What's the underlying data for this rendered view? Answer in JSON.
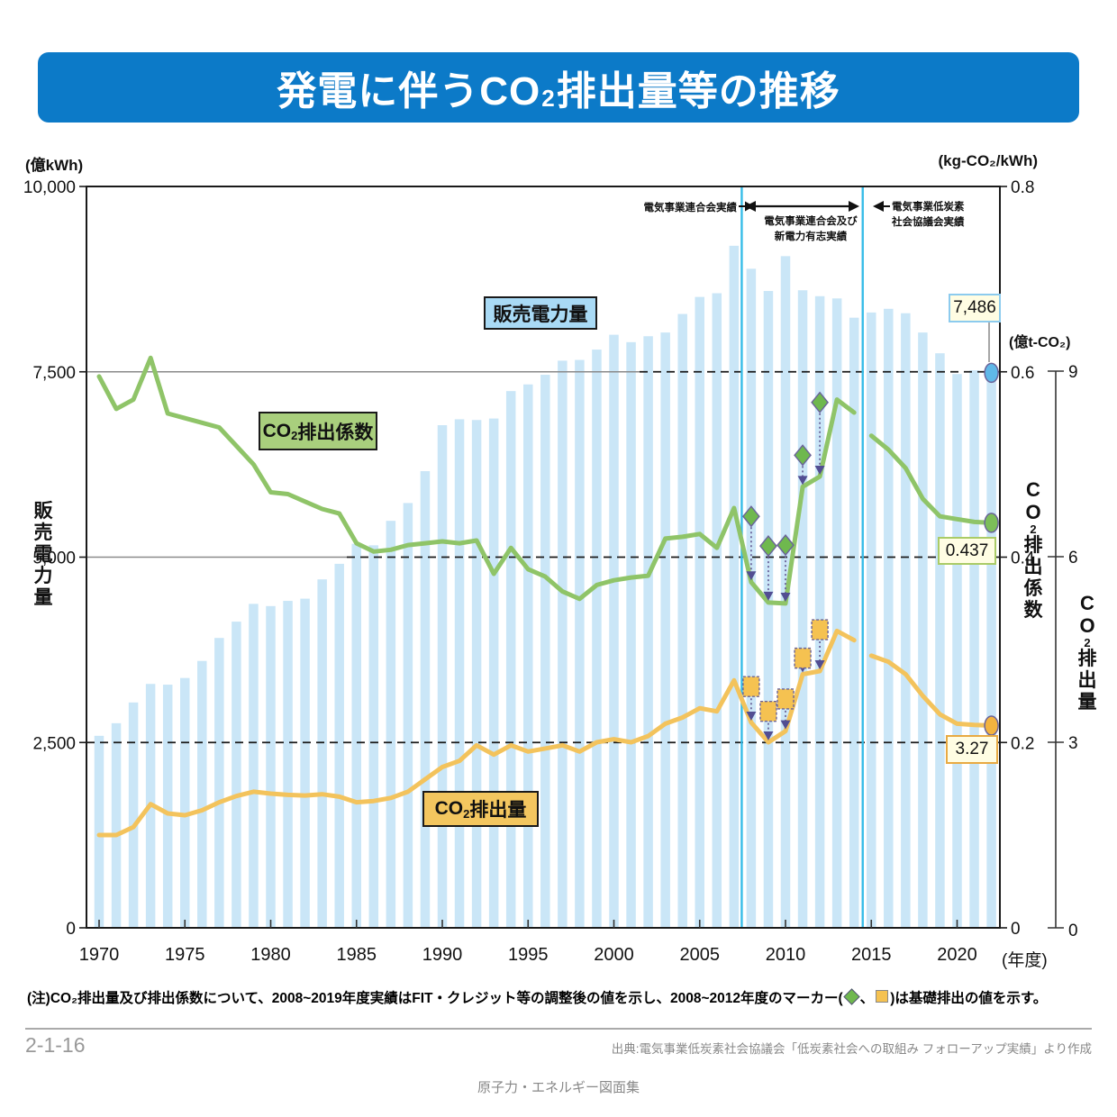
{
  "header": {
    "title_pre": "発電に伴うCO",
    "title_sub": "2",
    "title_post": "排出量等の推移"
  },
  "units": {
    "left": "(億kWh)",
    "right": "(kg-CO₂/kWh)",
    "right2": "(億t-CO₂)",
    "x": "(年度)"
  },
  "legend": {
    "sales": "販売電力量",
    "coef_pre": "CO",
    "coef_sub": "2",
    "coef_post": "排出係数",
    "co2_pre": "CO",
    "co2_sub": "2",
    "co2_post": "排出量"
  },
  "callouts": {
    "sales": "7,486",
    "coef": "0.437",
    "co2": "3.27"
  },
  "annotations": {
    "a1": "電気事業連合会実績",
    "a2_line1": "電気事業連合会及び",
    "a2_line2": "新電力有志実績",
    "a3_line1": "電気事業低炭素",
    "a3_line2": "社会協議会実績"
  },
  "note": {
    "pre": "(注)CO₂排出量及び排出係数について、2008~2019年度実績はFIT・クレジット等の調整後の値を示し、2008~2012年度のマーカー(",
    "sep": "、",
    "post": ")は基礎排出の値を示す。"
  },
  "footer": {
    "page": "2-1-16",
    "source": "出典:電気事業低炭素社会協議会「低炭素社会への取組み フォローアップ実績」より作成",
    "booklet": "原子力・エネルギー図面集"
  },
  "colors": {
    "header": "#0C7AC8",
    "bar": "#CAE6F7",
    "coef_line": "#8FC468",
    "co2_line": "#F3C35C",
    "divider": "#36BCE8",
    "marker_border": "#6A6399",
    "arrow": "#524E92",
    "diamond": "#6FB84E",
    "square": "#F5C251",
    "callout_bg": "#FFFDE3",
    "callout_sales_border": "#8CCBEE",
    "callout_coef_border": "#AACB66",
    "callout_co2_border": "#E8AA42",
    "label_sales_bg": "#A9DAF5",
    "label_coef_bg": "#A9CF7D",
    "label_co2_bg": "#F3C65F",
    "end_sales": "#5FB8E8",
    "end_coef": "#7CBE59",
    "end_co2": "#F3B33F"
  },
  "chart_data": {
    "type": "bar+line combo",
    "title": "発電に伴うCO2排出量等の推移",
    "xlabel": "(年度)",
    "x_ticks": [
      1970,
      1975,
      1980,
      1985,
      1990,
      1995,
      2000,
      2005,
      2010,
      2015,
      2020
    ],
    "left_axis": {
      "label": "販売電力量",
      "unit": "億kWh",
      "range": [
        0,
        10000
      ],
      "tick_values": [
        0,
        2500,
        5000,
        7500,
        10000
      ],
      "tick_labels": [
        "0",
        "2,500",
        "5,000",
        "7,500",
        "10,000"
      ],
      "gridlines": "dashed at 2500/5000/7500"
    },
    "right_axis_coef": {
      "label": "CO2排出係数",
      "unit": "kg-CO2/kWh",
      "range": [
        0,
        0.8
      ],
      "tick_values": [
        0,
        0.2,
        0.4,
        0.6,
        0.8
      ],
      "tick_labels": [
        "0",
        "0.2",
        "0.4",
        "0.6",
        "0.8"
      ]
    },
    "right_axis_co2": {
      "label": "CO2排出量",
      "unit": "億t-CO2",
      "range": [
        0,
        9
      ],
      "tick_values": [
        0,
        3,
        6,
        9
      ],
      "tick_labels": [
        "0",
        "3",
        "6",
        "9"
      ],
      "note": "9 aligns with 7500 on left axis"
    },
    "years": [
      1970,
      1971,
      1972,
      1973,
      1974,
      1975,
      1976,
      1977,
      1978,
      1979,
      1980,
      1981,
      1982,
      1983,
      1984,
      1985,
      1986,
      1987,
      1988,
      1989,
      1990,
      1991,
      1992,
      1993,
      1994,
      1995,
      1996,
      1997,
      1998,
      1999,
      2000,
      2001,
      2002,
      2003,
      2004,
      2005,
      2006,
      2007,
      2008,
      2009,
      2010,
      2011,
      2012,
      2013,
      2014,
      2015,
      2016,
      2017,
      2018,
      2019,
      2020,
      2021,
      2022
    ],
    "sales_bars": [
      2590,
      2760,
      3040,
      3290,
      3280,
      3370,
      3600,
      3910,
      4130,
      4370,
      4340,
      4410,
      4440,
      4700,
      4910,
      5180,
      5160,
      5490,
      5730,
      6160,
      6780,
      6860,
      6850,
      6870,
      7240,
      7330,
      7460,
      7650,
      7660,
      7800,
      8000,
      7900,
      7980,
      8030,
      8280,
      8510,
      8560,
      9200,
      8890,
      8590,
      9060,
      8600,
      8520,
      8490,
      8230,
      8300,
      8350,
      8290,
      8030,
      7750,
      7470,
      7520,
      7486
    ],
    "coef_line_1970_2014": [
      0.595,
      0.56,
      0.57,
      0.615,
      0.555,
      0.55,
      0.545,
      0.54,
      0.52,
      0.5,
      0.47,
      0.468,
      0.46,
      0.452,
      0.447,
      0.415,
      0.406,
      0.408,
      0.413,
      0.415,
      0.417,
      0.415,
      0.418,
      0.382,
      0.41,
      0.387,
      0.379,
      0.363,
      0.355,
      0.37,
      0.375,
      0.378,
      0.38,
      0.42,
      0.422,
      0.425,
      0.41,
      0.453,
      0.373,
      0.351,
      0.35,
      0.476,
      0.487,
      0.57,
      0.556
    ],
    "coef_line_2015_2022": [
      0.531,
      0.516,
      0.496,
      0.463,
      0.444,
      0.441,
      0.438,
      0.437
    ],
    "co2_line_1970_2014": [
      1.5,
      1.5,
      1.63,
      2.0,
      1.85,
      1.82,
      1.9,
      2.03,
      2.13,
      2.2,
      2.17,
      2.15,
      2.14,
      2.16,
      2.12,
      2.03,
      2.05,
      2.1,
      2.2,
      2.4,
      2.6,
      2.7,
      2.95,
      2.8,
      2.95,
      2.85,
      2.9,
      2.95,
      2.85,
      3.0,
      3.05,
      3.0,
      3.1,
      3.3,
      3.4,
      3.55,
      3.5,
      4.0,
      3.32,
      3.0,
      3.18,
      4.1,
      4.15,
      4.8,
      4.65
    ],
    "co2_line_2015_2022": [
      4.4,
      4.3,
      4.1,
      3.75,
      3.45,
      3.3,
      3.28,
      3.27
    ],
    "coef_basic_markers": [
      [
        2008,
        0.444
      ],
      [
        2009,
        0.412
      ],
      [
        2010,
        0.413
      ],
      [
        2011,
        0.51
      ],
      [
        2012,
        0.567
      ]
    ],
    "co2_basic_markers": [
      [
        2008,
        3.9
      ],
      [
        2009,
        3.5
      ],
      [
        2010,
        3.7
      ],
      [
        2011,
        4.36
      ],
      [
        2012,
        4.82
      ]
    ],
    "period_boundaries": [
      2007.45,
      2014.5
    ],
    "periods": [
      "電気事業連合会実績",
      "電気事業連合会及び新電力有志実績",
      "電気事業低炭素社会協議会実績"
    ],
    "final_values": {
      "sales": 7486,
      "coef": 0.437,
      "co2": 3.27
    },
    "legend_position": "inline boxes on plot"
  }
}
